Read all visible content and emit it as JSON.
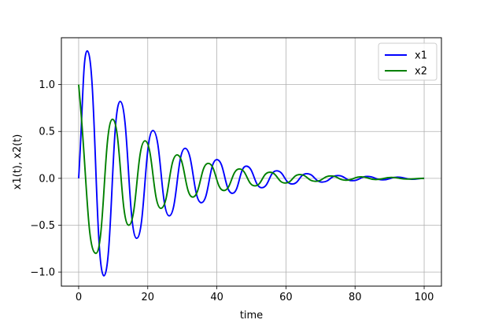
{
  "chart_data": {
    "type": "line",
    "xlabel": "time",
    "ylabel": "x1(t), x2(t)",
    "xlim": [
      -5,
      105
    ],
    "ylim": [
      -1.15,
      1.5
    ],
    "xticks": [
      0,
      20,
      40,
      60,
      80,
      100
    ],
    "xtick_labels": [
      "0",
      "20",
      "40",
      "60",
      "80",
      "100"
    ],
    "yticks": [
      -1.0,
      -0.5,
      0.0,
      0.5,
      1.0
    ],
    "ytick_labels": [
      "−1.0",
      "−0.5",
      "0.0",
      "0.5",
      "1.0"
    ],
    "grid": true,
    "legend_position": "top-right",
    "series": [
      {
        "name": "x1",
        "color": "#0000ff",
        "x": [
          0,
          2.5,
          7.3,
          12.0,
          16.8,
          21.5,
          26.2,
          30.8,
          35.5,
          40.0,
          44.5,
          48.5,
          53.0,
          57.3,
          61.8,
          66.0,
          70.5,
          75.0,
          79.3,
          83.5,
          88.0,
          92.3,
          96.5,
          100
        ],
        "y": [
          0.0,
          1.36,
          -1.04,
          0.82,
          -0.64,
          0.51,
          -0.4,
          0.32,
          -0.26,
          0.2,
          -0.16,
          0.13,
          -0.1,
          0.08,
          -0.06,
          0.05,
          -0.04,
          0.03,
          -0.025,
          0.02,
          -0.016,
          0.013,
          -0.01,
          0.0
        ]
      },
      {
        "name": "x2",
        "color": "#008000",
        "x": [
          0,
          5.0,
          9.8,
          14.5,
          19.2,
          23.8,
          28.5,
          33.0,
          37.5,
          42.0,
          46.5,
          51.0,
          55.3,
          59.8,
          64.0,
          68.5,
          73.0,
          77.3,
          81.8,
          86.0,
          90.5,
          95.0,
          100
        ],
        "y": [
          1.0,
          -0.8,
          0.63,
          -0.5,
          0.4,
          -0.32,
          0.25,
          -0.2,
          0.16,
          -0.13,
          0.1,
          -0.08,
          0.065,
          -0.05,
          0.04,
          -0.032,
          0.026,
          -0.02,
          0.016,
          -0.013,
          0.01,
          -0.008,
          0.0
        ]
      }
    ]
  }
}
